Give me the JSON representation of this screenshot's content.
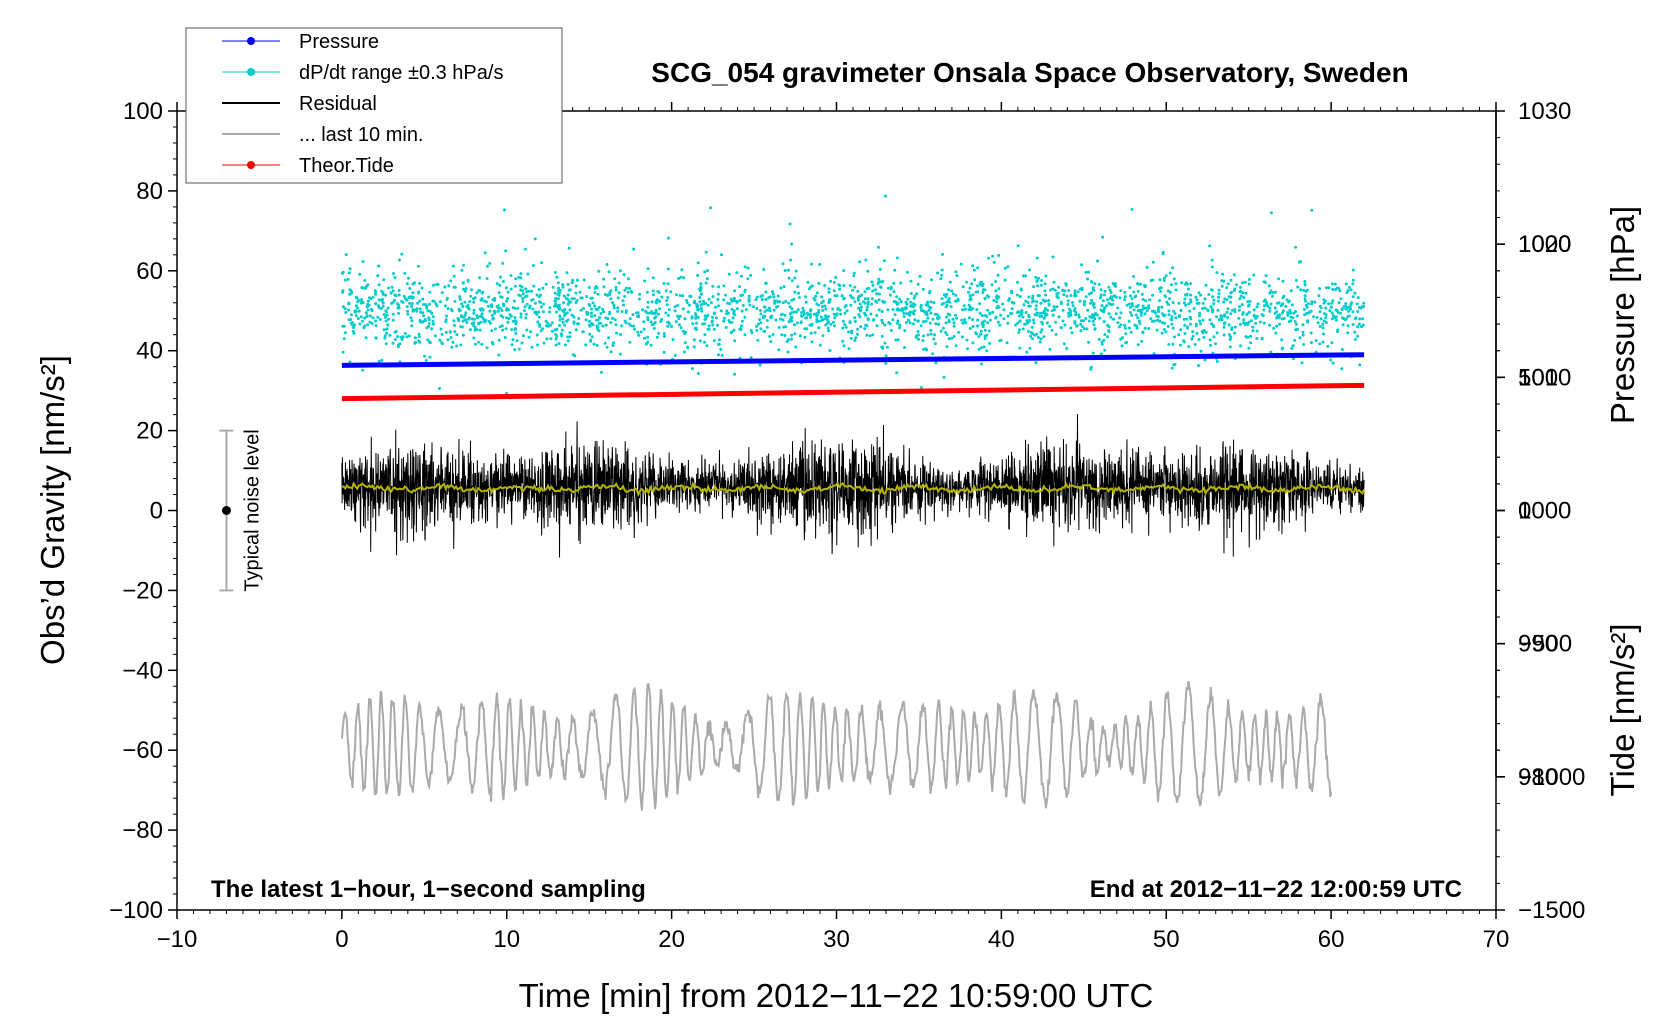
{
  "chart_data": {
    "type": "line",
    "title": "SCG_054 gravimeter Onsala Space Observatory, Sweden",
    "xlabel": "Time [min] from 2012−11−22 10:59:00 UTC",
    "ylabel_left": "Obs’d Gravity [nm/s²]",
    "ylabel_pressure": "Pressure [hPa]",
    "ylabel_tide": "Tide [nm/s²]",
    "xlim": [
      -10,
      70
    ],
    "ylim_left": [
      -100,
      100
    ],
    "pressure_ylim": [
      970,
      1030
    ],
    "tide_ylim": [
      -1500,
      1500
    ],
    "x_ticks": [
      "−10",
      "0",
      "10",
      "20",
      "30",
      "40",
      "50",
      "60",
      "70"
    ],
    "left_ticks": [
      "−100",
      "−80",
      "−60",
      "−40",
      "−20",
      "0",
      "20",
      "40",
      "60",
      "80",
      "100"
    ],
    "pressure_ticks": [
      "980",
      "990",
      "1000",
      "1010",
      "1020",
      "1030"
    ],
    "tide_ticks": [
      "−1500",
      "−1000",
      "−500",
      "0",
      "500",
      "1000"
    ],
    "annotation_left": "The latest 1−hour, 1−second sampling",
    "annotation_right": "End at 2012−11−22 12:00:59 UTC",
    "noise_label": "Typical noise level",
    "noise_bar": {
      "x": -7,
      "center": 0,
      "range": [
        -20,
        20
      ]
    },
    "legend_position": "top-left",
    "legend": [
      {
        "label": "Pressure",
        "color": "#0000ff",
        "style": "line-dot"
      },
      {
        "label": "dP/dt range ±0.3 hPa/s",
        "color": "#00cccc",
        "style": "line-dot"
      },
      {
        "label": "Residual",
        "color": "#000000",
        "style": "line"
      },
      {
        "label": "... last 10 min.",
        "color": "#aaaaaa",
        "style": "line"
      },
      {
        "label": "Theor.Tide",
        "color": "#ff0000",
        "style": "line-dot"
      }
    ],
    "series": [
      {
        "name": "Pressure",
        "axis": "pressure",
        "color": "#0000ff",
        "x": [
          0,
          62
        ],
        "y": [
          1010.9,
          1011.7
        ]
      },
      {
        "name": "dP/dt range ±0.3 hPa/s",
        "axis": "left",
        "color": "#00cccc",
        "x_range": [
          0,
          62
        ],
        "center": 50,
        "spread": 5,
        "outlier_range": [
          30,
          80
        ]
      },
      {
        "name": "Residual",
        "axis": "left",
        "color": "#000000",
        "x_range": [
          0,
          62
        ],
        "center": 6,
        "amplitude": [
          -17,
          27
        ]
      },
      {
        "name": "Residual smoothed",
        "axis": "left",
        "color": "#b3b300",
        "x_range": [
          0,
          62
        ],
        "center": 5.5
      },
      {
        "name": "... last 10 min.",
        "axis": "left",
        "color": "#aaaaaa",
        "x_range": [
          0,
          60
        ],
        "center": -59,
        "amplitude": [
          -76,
          -37
        ]
      },
      {
        "name": "Theor.Tide",
        "axis": "tide",
        "color": "#ff0000",
        "x": [
          0,
          62
        ],
        "y": [
          420,
          470
        ]
      }
    ]
  }
}
